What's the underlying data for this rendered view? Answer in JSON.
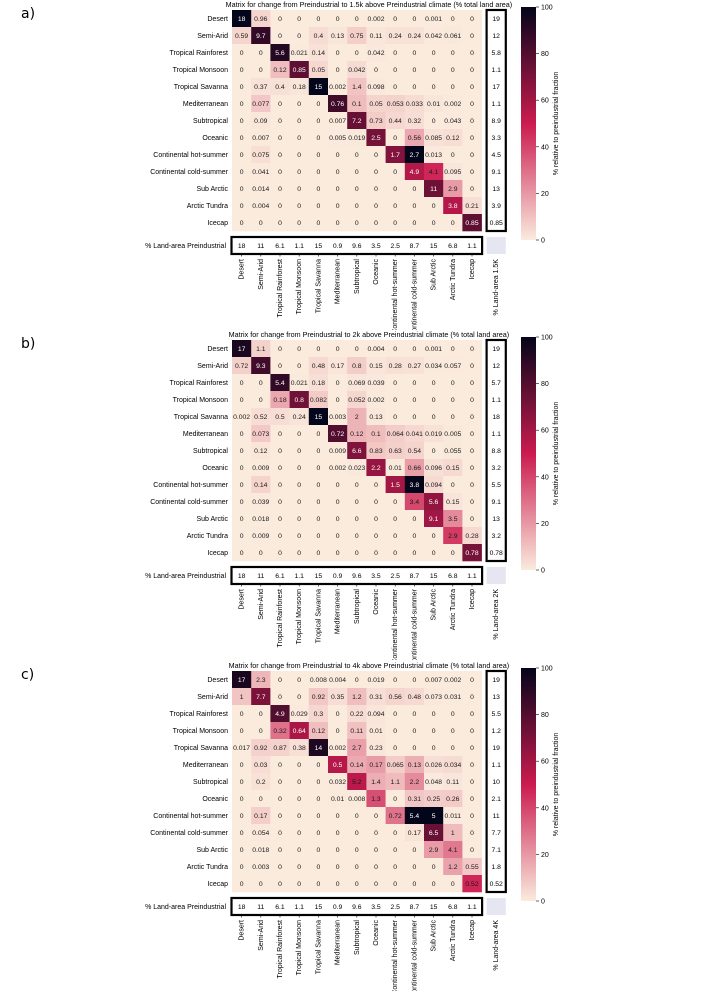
{
  "categories": [
    "Desert",
    "Semi-Arid",
    "Tropical Rainforest",
    "Tropical Monsoon",
    "Tropical Savanna",
    "Mediterranean",
    "Subtropical",
    "Oceanic",
    "Continental hot-summer",
    "Continental cold-summer",
    "Sub Arctic",
    "Arctic Tundra",
    "Icecap"
  ],
  "preindustrial_label": "% Land-area Preindustrial",
  "preindustrial": [
    "18",
    "11",
    "6.1",
    "1.1",
    "15",
    "0.9",
    "9.6",
    "3.5",
    "2.5",
    "8.7",
    "15",
    "6.8",
    "1.1"
  ],
  "colorbar_label": "% relative to preindustrial fraction",
  "colorbar_ticks": [
    "0",
    "20",
    "40",
    "60",
    "80",
    "100"
  ],
  "colors": {
    "low": "#faebdd",
    "mid": "#cb1b4f",
    "high": "#03051a"
  },
  "chart_data": [
    {
      "type": "heatmap",
      "panel_label": "a)",
      "title": "Matrix for change from Preindustrial to 1.5k above Preindustrial climate (% total land area)",
      "future_label": "% Land-area 1.5K",
      "future": [
        "19",
        "12",
        "5.8",
        "1.1",
        "17",
        "1.1",
        "8.9",
        "3.3",
        "4.5",
        "9.1",
        "13",
        "3.9",
        "0.85"
      ],
      "matrix": [
        [
          "18",
          "0.96",
          "0",
          "0",
          "0",
          "0",
          "0",
          "0.002",
          "0",
          "0",
          "0.001",
          "0",
          "0"
        ],
        [
          "0.59",
          "9.7",
          "0",
          "0",
          "0.4",
          "0.13",
          "0.75",
          "0.11",
          "0.24",
          "0.24",
          "0.042",
          "0.061",
          "0"
        ],
        [
          "0",
          "0",
          "5.6",
          "0.021",
          "0.14",
          "0",
          "0",
          "0.042",
          "0",
          "0",
          "0",
          "0",
          "0"
        ],
        [
          "0",
          "0",
          "0.12",
          "0.85",
          "0.05",
          "0",
          "0.042",
          "0",
          "0",
          "0",
          "0",
          "0",
          "0"
        ],
        [
          "0",
          "0.37",
          "0.4",
          "0.18",
          "15",
          "0.002",
          "1.4",
          "0.098",
          "0",
          "0",
          "0",
          "0",
          "0"
        ],
        [
          "0",
          "0.077",
          "0",
          "0",
          "0",
          "0.76",
          "0.1",
          "0.05",
          "0.053",
          "0.033",
          "0.01",
          "0.002",
          "0"
        ],
        [
          "0",
          "0.09",
          "0",
          "0",
          "0",
          "0.007",
          "7.2",
          "0.73",
          "0.44",
          "0.32",
          "0",
          "0.043",
          "0"
        ],
        [
          "0",
          "0.007",
          "0",
          "0",
          "0",
          "0.005",
          "0.019",
          "2.5",
          "0",
          "0.56",
          "0.085",
          "0.12",
          "0"
        ],
        [
          "0",
          "0.075",
          "0",
          "0",
          "0",
          "0",
          "0",
          "0",
          "1.7",
          "2.7",
          "0.013",
          "0",
          "0"
        ],
        [
          "0",
          "0.041",
          "0",
          "0",
          "0",
          "0",
          "0",
          "0",
          "0",
          "4.9",
          "4.1",
          "0.095",
          "0"
        ],
        [
          "0",
          "0.014",
          "0",
          "0",
          "0",
          "0",
          "0",
          "0",
          "0",
          "0",
          "11",
          "2.9",
          "0"
        ],
        [
          "0",
          "0.004",
          "0",
          "0",
          "0",
          "0",
          "0",
          "0",
          "0",
          "0",
          "0",
          "3.8",
          "0.21"
        ],
        [
          "0",
          "0",
          "0",
          "0",
          "0",
          "0",
          "0",
          "0",
          "0",
          "0",
          "0",
          "0",
          "0.85"
        ]
      ]
    },
    {
      "type": "heatmap",
      "panel_label": "b)",
      "title": "Matrix for change from Preindustrial to 2k above Preindustrial climate (% total land area)",
      "future_label": "% Land-area 2K",
      "future": [
        "19",
        "12",
        "5.7",
        "1.1",
        "18",
        "1.1",
        "8.8",
        "3.2",
        "5.5",
        "9.1",
        "13",
        "3.2",
        "0.78"
      ],
      "matrix": [
        [
          "17",
          "1.1",
          "0",
          "0",
          "0",
          "0",
          "0",
          "0.004",
          "0",
          "0",
          "0.001",
          "0",
          "0"
        ],
        [
          "0.72",
          "9.3",
          "0",
          "0",
          "0.48",
          "0.17",
          "0.8",
          "0.15",
          "0.28",
          "0.27",
          "0.034",
          "0.057",
          "0"
        ],
        [
          "0",
          "0",
          "5.4",
          "0.021",
          "0.18",
          "0",
          "0.069",
          "0.039",
          "0",
          "0",
          "0",
          "0",
          "0"
        ],
        [
          "0",
          "0",
          "0.18",
          "0.8",
          "0.082",
          "0",
          "0.052",
          "0.002",
          "0",
          "0",
          "0",
          "0",
          "0"
        ],
        [
          "0.002",
          "0.52",
          "0.5",
          "0.24",
          "15",
          "0.003",
          "2",
          "0.13",
          "0",
          "0",
          "0",
          "0",
          "0"
        ],
        [
          "0",
          "0.073",
          "0",
          "0",
          "0",
          "0.72",
          "0.12",
          "0.1",
          "0.064",
          "0.041",
          "0.019",
          "0.005",
          "0"
        ],
        [
          "0",
          "0.12",
          "0",
          "0",
          "0",
          "0.009",
          "6.6",
          "0.83",
          "0.63",
          "0.54",
          "0",
          "0.055",
          "0"
        ],
        [
          "0",
          "0.009",
          "0",
          "0",
          "0",
          "0.002",
          "0.023",
          "2.2",
          "0.01",
          "0.66",
          "0.096",
          "0.15",
          "0"
        ],
        [
          "0",
          "0.14",
          "0",
          "0",
          "0",
          "0",
          "0",
          "0",
          "1.5",
          "3.8",
          "0.094",
          "0",
          "0"
        ],
        [
          "0",
          "0.039",
          "0",
          "0",
          "0",
          "0",
          "0",
          "0",
          "0",
          "3.4",
          "5.6",
          "0.15",
          "0"
        ],
        [
          "0",
          "0.018",
          "0",
          "0",
          "0",
          "0",
          "0",
          "0",
          "0",
          "0",
          "9.1",
          "3.5",
          "0"
        ],
        [
          "0",
          "0.009",
          "0",
          "0",
          "0",
          "0",
          "0",
          "0",
          "0",
          "0",
          "0",
          "2.9",
          "0.28"
        ],
        [
          "0",
          "0",
          "0",
          "0",
          "0",
          "0",
          "0",
          "0",
          "0",
          "0",
          "0",
          "0",
          "0.78"
        ]
      ]
    },
    {
      "type": "heatmap",
      "panel_label": "c)",
      "title": "Matrix for change from Preindustrial to 4k above Preindustrial climate (% total land area)",
      "future_label": "% Land-area 4K",
      "future": [
        "19",
        "13",
        "5.5",
        "1.2",
        "19",
        "1.1",
        "10",
        "2.1",
        "11",
        "7.7",
        "7.1",
        "1.8",
        "0.52"
      ],
      "matrix": [
        [
          "17",
          "2.3",
          "0",
          "0",
          "0.008",
          "0.004",
          "0",
          "0.019",
          "0",
          "0",
          "0.007",
          "0.002",
          "0"
        ],
        [
          "1",
          "7.7",
          "0",
          "0",
          "0.92",
          "0.35",
          "1.2",
          "0.31",
          "0.56",
          "0.48",
          "0.073",
          "0.031",
          "0"
        ],
        [
          "0",
          "0",
          "4.9",
          "0.029",
          "0.3",
          "0",
          "0.22",
          "0.094",
          "0",
          "0",
          "0",
          "0",
          "0"
        ],
        [
          "0",
          "0",
          "0.32",
          "0.64",
          "0.12",
          "0",
          "0.11",
          "0.01",
          "0",
          "0",
          "0",
          "0",
          "0"
        ],
        [
          "0.017",
          "0.92",
          "0.87",
          "0.38",
          "14",
          "0.002",
          "2.7",
          "0.23",
          "0",
          "0",
          "0",
          "0",
          "0"
        ],
        [
          "0",
          "0.03",
          "0",
          "0",
          "0",
          "0.5",
          "0.14",
          "0.17",
          "0.065",
          "0.13",
          "0.026",
          "0.034",
          "0"
        ],
        [
          "0",
          "0.2",
          "0",
          "0",
          "0",
          "0.032",
          "5.2",
          "1.4",
          "1.1",
          "2.2",
          "0.048",
          "0.11",
          "0"
        ],
        [
          "0",
          "0",
          "0",
          "0",
          "0",
          "0.01",
          "0.008",
          "1.3",
          "0",
          "0.31",
          "0.25",
          "0.26",
          "0"
        ],
        [
          "0",
          "0.17",
          "0",
          "0",
          "0",
          "0",
          "0",
          "0",
          "0.72",
          "5.4",
          "5",
          "0.011",
          "0"
        ],
        [
          "0",
          "0.054",
          "0",
          "0",
          "0",
          "0",
          "0",
          "0",
          "0",
          "0.17",
          "6.5",
          "1",
          "0"
        ],
        [
          "0",
          "0.018",
          "0",
          "0",
          "0",
          "0",
          "0",
          "0",
          "0",
          "0",
          "2.9",
          "4.1",
          "0"
        ],
        [
          "0",
          "0.003",
          "0",
          "0",
          "0",
          "0",
          "0",
          "0",
          "0",
          "0",
          "0",
          "1.2",
          "0.55"
        ],
        [
          "0",
          "0",
          "0",
          "0",
          "0",
          "0",
          "0",
          "0",
          "0",
          "0",
          "0",
          "0",
          "0.52"
        ]
      ]
    }
  ]
}
